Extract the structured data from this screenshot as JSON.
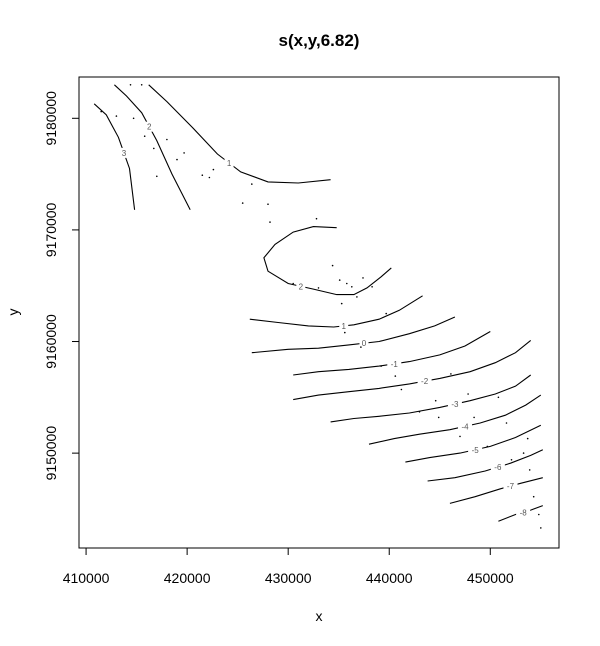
{
  "chart_data": {
    "type": "contour",
    "title": "s(x,y,6.82)",
    "xlabel": "x",
    "ylabel": "y",
    "xlim": [
      409300,
      456800
    ],
    "ylim": [
      9141500,
      9183700
    ],
    "xticks": [
      410000,
      420000,
      430000,
      440000,
      450000
    ],
    "yticks": [
      9150000,
      9160000,
      9170000,
      9180000
    ],
    "grid": false,
    "contours": [
      {
        "level": "3",
        "points": [
          [
            410800,
            9181300
          ],
          [
            412000,
            9180300
          ],
          [
            413200,
            9178300
          ],
          [
            414300,
            9175500
          ],
          [
            414800,
            9171800
          ]
        ]
      },
      {
        "level": "2",
        "points": [
          [
            412800,
            9183000
          ],
          [
            414000,
            9182000
          ],
          [
            415500,
            9180500
          ],
          [
            417000,
            9178000
          ],
          [
            418500,
            9175000
          ],
          [
            420300,
            9171800
          ]
        ]
      },
      {
        "level": "1",
        "points": [
          [
            416200,
            9183000
          ],
          [
            418000,
            9181500
          ],
          [
            420500,
            9179200
          ],
          [
            423000,
            9176800
          ],
          [
            425300,
            9175200
          ],
          [
            428000,
            9174300
          ],
          [
            431000,
            9174200
          ],
          [
            434200,
            9174500
          ]
        ]
      },
      {
        "level": "2",
        "points": [
          [
            434800,
            9170200
          ],
          [
            432500,
            9170300
          ],
          [
            430500,
            9169800
          ],
          [
            428700,
            9168700
          ],
          [
            427600,
            9167500
          ],
          [
            428000,
            9166300
          ],
          [
            430000,
            9165200
          ],
          [
            432500,
            9164700
          ],
          [
            434800,
            9164200
          ],
          [
            436500,
            9164200
          ],
          [
            437800,
            9164800
          ],
          [
            439200,
            9165800
          ],
          [
            440200,
            9166600
          ]
        ]
      },
      {
        "level": "1",
        "points": [
          [
            426200,
            9162000
          ],
          [
            429000,
            9161700
          ],
          [
            432000,
            9161400
          ],
          [
            434500,
            9161300
          ],
          [
            436500,
            9161500
          ],
          [
            439000,
            9162000
          ],
          [
            441000,
            9162800
          ],
          [
            443300,
            9164100
          ]
        ]
      },
      {
        "level": "0",
        "points": [
          [
            426400,
            9159000
          ],
          [
            430000,
            9159300
          ],
          [
            433000,
            9159400
          ],
          [
            436000,
            9159700
          ],
          [
            439000,
            9160000
          ],
          [
            442000,
            9160700
          ],
          [
            444500,
            9161400
          ],
          [
            446500,
            9162200
          ]
        ]
      },
      {
        "level": "-1",
        "points": [
          [
            430500,
            9157000
          ],
          [
            433000,
            9157300
          ],
          [
            436000,
            9157500
          ],
          [
            439000,
            9157800
          ],
          [
            442000,
            9158200
          ],
          [
            445000,
            9158800
          ],
          [
            447500,
            9159600
          ],
          [
            450000,
            9160900
          ]
        ]
      },
      {
        "level": "-2",
        "points": [
          [
            430500,
            9154800
          ],
          [
            433000,
            9155200
          ],
          [
            436000,
            9155500
          ],
          [
            439000,
            9155800
          ],
          [
            442000,
            9156200
          ],
          [
            445000,
            9156700
          ],
          [
            448000,
            9157300
          ],
          [
            450500,
            9158100
          ],
          [
            452500,
            9159000
          ],
          [
            454000,
            9160100
          ]
        ]
      },
      {
        "level": "-3",
        "points": [
          [
            434200,
            9152800
          ],
          [
            436500,
            9153100
          ],
          [
            439000,
            9153300
          ],
          [
            442000,
            9153600
          ],
          [
            445000,
            9154100
          ],
          [
            448000,
            9154700
          ],
          [
            450500,
            9155300
          ],
          [
            452500,
            9156000
          ],
          [
            454000,
            9157000
          ]
        ]
      },
      {
        "level": "-4",
        "points": [
          [
            438000,
            9150800
          ],
          [
            440500,
            9151300
          ],
          [
            443000,
            9151700
          ],
          [
            446000,
            9152100
          ],
          [
            449000,
            9152700
          ],
          [
            451500,
            9153400
          ],
          [
            453500,
            9154300
          ],
          [
            455000,
            9155200
          ]
        ]
      },
      {
        "level": "-5",
        "points": [
          [
            441600,
            9149200
          ],
          [
            444000,
            9149600
          ],
          [
            447000,
            9150000
          ],
          [
            450000,
            9150600
          ],
          [
            452500,
            9151400
          ],
          [
            455000,
            9152500
          ]
        ]
      },
      {
        "level": "-6",
        "points": [
          [
            443800,
            9147500
          ],
          [
            446500,
            9147800
          ],
          [
            449500,
            9148400
          ],
          [
            452000,
            9149100
          ],
          [
            454000,
            9149800
          ],
          [
            455200,
            9150300
          ]
        ]
      },
      {
        "level": "-7",
        "points": [
          [
            446000,
            9145500
          ],
          [
            448500,
            9146100
          ],
          [
            451000,
            9146800
          ],
          [
            453000,
            9147300
          ],
          [
            455200,
            9147800
          ]
        ]
      },
      {
        "level": "-8",
        "points": [
          [
            450800,
            9143900
          ],
          [
            452500,
            9144500
          ],
          [
            454000,
            9144900
          ],
          [
            455200,
            9145300
          ]
        ]
      }
    ],
    "data_points": [
      [
        411500,
        9180600
      ],
      [
        413000,
        9180200
      ],
      [
        414400,
        9183000
      ],
      [
        414700,
        9180000
      ],
      [
        415500,
        9183000
      ],
      [
        415800,
        9178400
      ],
      [
        416700,
        9177300
      ],
      [
        417000,
        9174800
      ],
      [
        418000,
        9178100
      ],
      [
        419000,
        9176300
      ],
      [
        419700,
        9176900
      ],
      [
        421500,
        9174900
      ],
      [
        422200,
        9174700
      ],
      [
        422600,
        9175400
      ],
      [
        425500,
        9172400
      ],
      [
        426400,
        9174100
      ],
      [
        428000,
        9172300
      ],
      [
        428200,
        9170700
      ],
      [
        430500,
        9165200
      ],
      [
        432800,
        9171000
      ],
      [
        433000,
        9164800
      ],
      [
        434400,
        9166800
      ],
      [
        435100,
        9165500
      ],
      [
        435300,
        9163400
      ],
      [
        435800,
        9165200
      ],
      [
        436300,
        9164900
      ],
      [
        436800,
        9164000
      ],
      [
        437400,
        9165700
      ],
      [
        438300,
        9164900
      ],
      [
        439700,
        9162500
      ],
      [
        435600,
        9160800
      ],
      [
        437200,
        9159500
      ],
      [
        439200,
        9157800
      ],
      [
        440600,
        9156900
      ],
      [
        441200,
        9155700
      ],
      [
        443000,
        9153700
      ],
      [
        444600,
        9154700
      ],
      [
        444900,
        9153200
      ],
      [
        446100,
        9157100
      ],
      [
        447800,
        9155300
      ],
      [
        448400,
        9153200
      ],
      [
        449700,
        9150600
      ],
      [
        450800,
        9155000
      ],
      [
        451600,
        9152700
      ],
      [
        452100,
        9149400
      ],
      [
        453700,
        9151300
      ],
      [
        453900,
        9148500
      ],
      [
        454300,
        9146100
      ],
      [
        454800,
        9144500
      ],
      [
        455000,
        9143300
      ],
      [
        453300,
        9150000
      ],
      [
        447000,
        9151500
      ]
    ]
  }
}
